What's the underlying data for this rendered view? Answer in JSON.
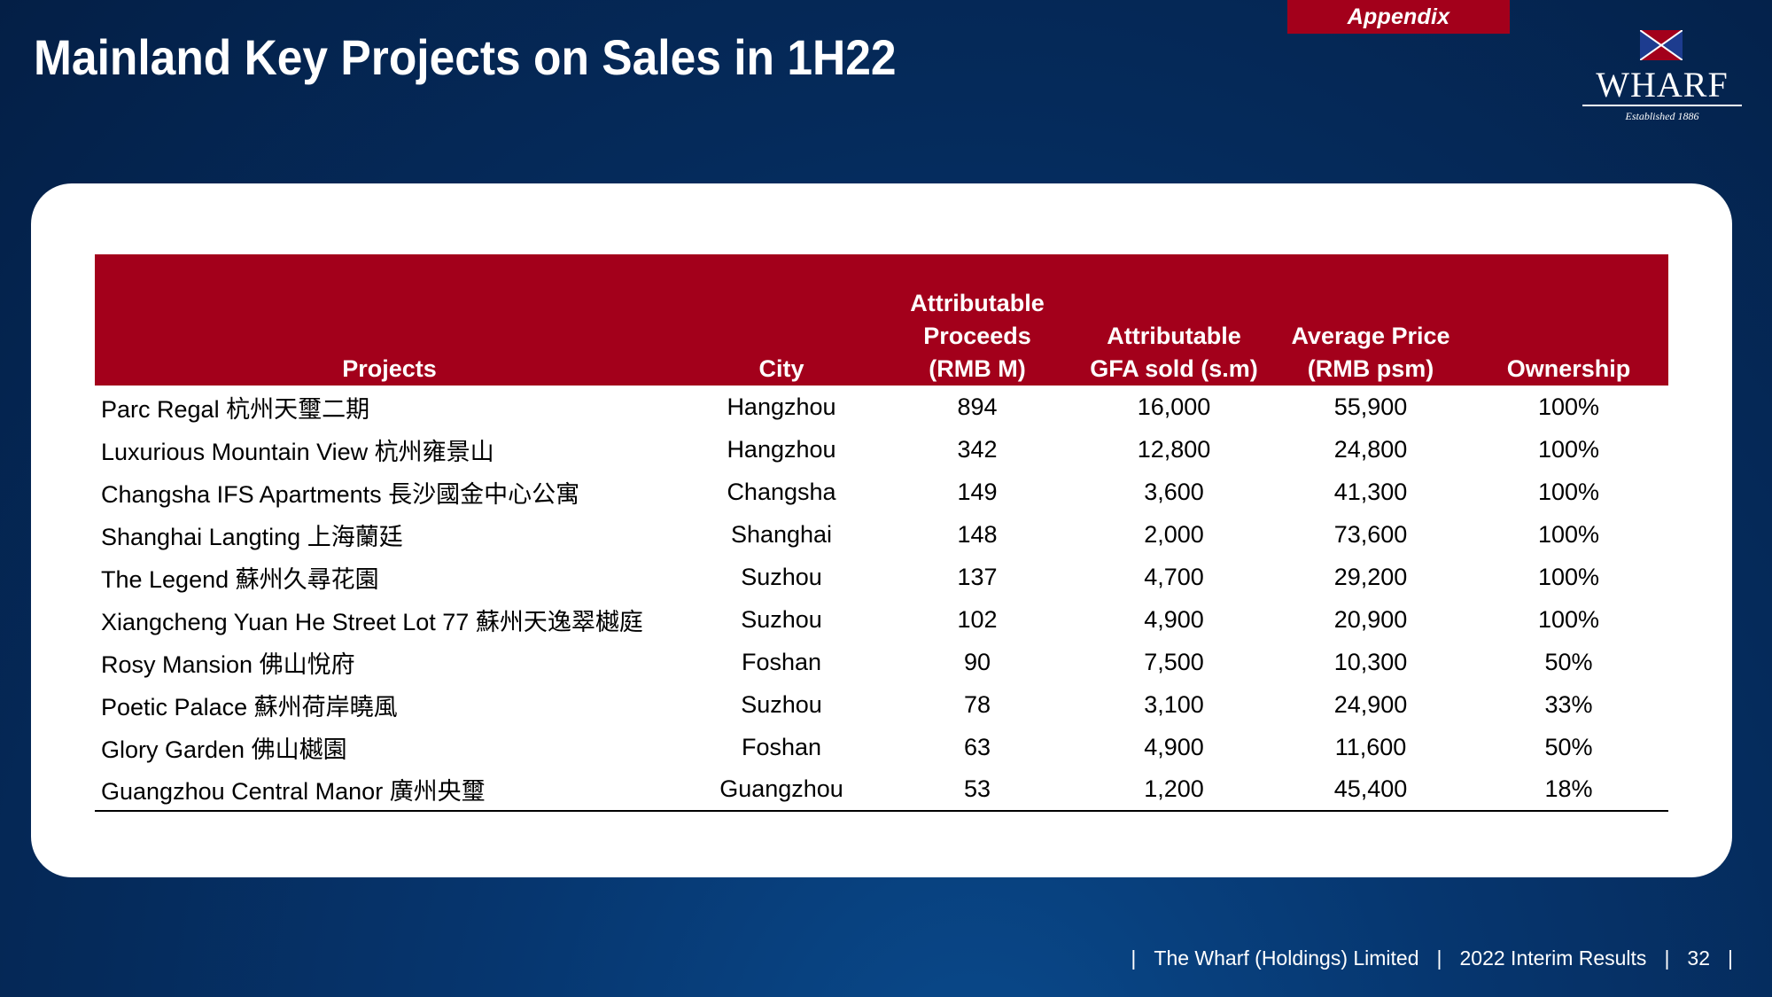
{
  "slide": {
    "tab_label": "Appendix",
    "title": "Mainland Key Projects on Sales in 1H22"
  },
  "logo": {
    "wordmark": "WHARF",
    "tagline": "Established 1886",
    "flag_colors": [
      "#a3001b",
      "#1d3c8f"
    ]
  },
  "table": {
    "headers": [
      [
        "Projects"
      ],
      [
        "City"
      ],
      [
        "Attributable",
        "Proceeds",
        "(RMB M)"
      ],
      [
        "Attributable",
        "GFA sold (s.m)"
      ],
      [
        "Average Price",
        "(RMB psm)"
      ],
      [
        "Ownership"
      ]
    ],
    "rows": [
      [
        "Parc Regal 杭州天璽二期",
        "Hangzhou",
        "894",
        "16,000",
        "55,900",
        "100%"
      ],
      [
        "Luxurious Mountain View 杭州雍景山",
        "Hangzhou",
        "342",
        "12,800",
        "24,800",
        "100%"
      ],
      [
        "Changsha IFS Apartments 長沙國金中心公寓",
        "Changsha",
        "149",
        "3,600",
        "41,300",
        "100%"
      ],
      [
        "Shanghai Langting 上海蘭廷",
        "Shanghai",
        "148",
        "2,000",
        "73,600",
        "100%"
      ],
      [
        "The Legend 蘇州久尋花園",
        "Suzhou",
        "137",
        "4,700",
        "29,200",
        "100%"
      ],
      [
        "Xiangcheng Yuan He Street Lot 77 蘇州天逸翠樾庭",
        "Suzhou",
        "102",
        "4,900",
        "20,900",
        "100%"
      ],
      [
        "Rosy Mansion 佛山悅府",
        "Foshan",
        "90",
        "7,500",
        "10,300",
        "50%"
      ],
      [
        "Poetic Palace 蘇州荷岸曉風",
        "Suzhou",
        "78",
        "3,100",
        "24,900",
        "33%"
      ],
      [
        "Glory Garden 佛山樾園",
        "Foshan",
        "63",
        "4,900",
        "11,600",
        "50%"
      ],
      [
        "Guangzhou Central Manor 廣州央璽",
        "Guangzhou",
        "53",
        "1,200",
        "45,400",
        "18%"
      ]
    ]
  },
  "footer": {
    "company": "The Wharf (Holdings) Limited",
    "report": "2022 Interim Results",
    "page_number": "32"
  },
  "colors": {
    "accent_red": "#a3001b",
    "background_navy": "#052a5a"
  }
}
